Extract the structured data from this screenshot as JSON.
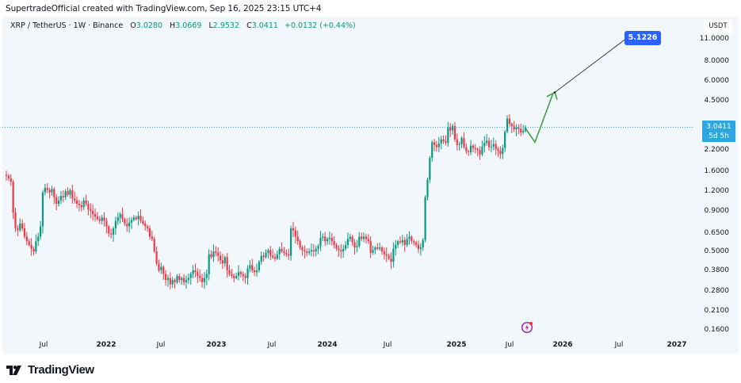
{
  "attribution": "SupertradeOfficial created with TradingView.com, Sep 16, 2025 23:15 UTC+4",
  "legend": {
    "symbol": "XRP / TetherUS · 1W · Binance",
    "open_label": "O",
    "open": "3.0280",
    "high_label": "H",
    "high": "3.0669",
    "low_label": "L",
    "low": "2.9532",
    "close_label": "C",
    "close": "3.0411",
    "change": "+0.0132 (+0.44%)"
  },
  "price_axis": {
    "currency": "USDT",
    "last_price": "3.0411",
    "countdown": "5d 5h",
    "ticks": [
      "11.0000",
      "8.0000",
      "6.0000",
      "4.5000",
      "2.2000",
      "1.6000",
      "1.2000",
      "0.9000",
      "0.6500",
      "0.5000",
      "0.3800",
      "0.2800",
      "0.2100",
      "0.1600"
    ]
  },
  "time_axis": {
    "ticks": [
      "Jul",
      "2022",
      "Jul",
      "2023",
      "Jul",
      "2024",
      "Jul",
      "2025",
      "Jul",
      "2026",
      "Jul",
      "2027"
    ]
  },
  "annotation": {
    "target_price": "5.1226"
  },
  "footer": {
    "brand": "TradingView"
  },
  "colors": {
    "up": "#089981",
    "down": "#f23645",
    "projection": "#43a047",
    "target_label_bg": "#2962ff",
    "last_price_bg": "#2ea7e0",
    "chart_bg": "#f1f7fb"
  },
  "chart_data": {
    "type": "candlestick",
    "title": "XRP / TetherUS · 1W · Binance",
    "xlabel": "",
    "ylabel": "USDT",
    "y_scale": "log",
    "ylim": [
      0.14,
      13
    ],
    "x_tick_labels": [
      "Jul",
      "2022",
      "Jul",
      "2023",
      "Jul",
      "2024",
      "Jul",
      "2025",
      "Jul",
      "2026",
      "Jul",
      "2027"
    ],
    "y_tick_labels": [
      11.0,
      8.0,
      6.0,
      4.5,
      2.2,
      1.6,
      1.2,
      0.9,
      0.65,
      0.5,
      0.38,
      0.28,
      0.21,
      0.16
    ],
    "last": {
      "open": 3.028,
      "high": 3.0669,
      "low": 2.9532,
      "close": 3.0411,
      "change": 0.0132,
      "change_pct": 0.44
    },
    "weekly_closes": [
      1.5,
      1.45,
      1.38,
      0.88,
      0.7,
      0.68,
      0.75,
      0.7,
      0.62,
      0.58,
      0.55,
      0.52,
      0.5,
      0.58,
      0.62,
      0.72,
      1.18,
      1.26,
      1.22,
      1.18,
      1.24,
      1.1,
      1.0,
      1.05,
      1.12,
      1.1,
      1.2,
      1.14,
      1.22,
      1.08,
      1.05,
      1.0,
      0.98,
      0.95,
      1.05,
      1.0,
      0.92,
      0.9,
      0.86,
      0.83,
      0.8,
      0.78,
      0.82,
      0.78,
      0.72,
      0.65,
      0.64,
      0.7,
      0.78,
      0.82,
      0.86,
      0.8,
      0.75,
      0.72,
      0.76,
      0.79,
      0.82,
      0.8,
      0.84,
      0.78,
      0.75,
      0.72,
      0.7,
      0.62,
      0.6,
      0.5,
      0.42,
      0.38,
      0.4,
      0.36,
      0.33,
      0.34,
      0.31,
      0.33,
      0.32,
      0.35,
      0.33,
      0.34,
      0.32,
      0.33,
      0.34,
      0.36,
      0.38,
      0.37,
      0.35,
      0.34,
      0.32,
      0.34,
      0.36,
      0.48,
      0.46,
      0.5,
      0.49,
      0.47,
      0.44,
      0.42,
      0.46,
      0.38,
      0.36,
      0.35,
      0.34,
      0.35,
      0.37,
      0.36,
      0.35,
      0.34,
      0.39,
      0.41,
      0.38,
      0.37,
      0.38,
      0.43,
      0.47,
      0.46,
      0.49,
      0.51,
      0.47,
      0.46,
      0.45,
      0.48,
      0.52,
      0.5,
      0.49,
      0.48,
      0.47,
      0.7,
      0.68,
      0.62,
      0.58,
      0.53,
      0.51,
      0.5,
      0.49,
      0.5,
      0.51,
      0.5,
      0.52,
      0.54,
      0.61,
      0.62,
      0.58,
      0.6,
      0.61,
      0.58,
      0.55,
      0.52,
      0.51,
      0.5,
      0.52,
      0.55,
      0.6,
      0.62,
      0.57,
      0.53,
      0.54,
      0.62,
      0.6,
      0.62,
      0.6,
      0.58,
      0.49,
      0.51,
      0.53,
      0.52,
      0.53,
      0.5,
      0.48,
      0.47,
      0.45,
      0.43,
      0.52,
      0.55,
      0.58,
      0.57,
      0.59,
      0.55,
      0.6,
      0.62,
      0.58,
      0.57,
      0.55,
      0.52,
      0.53,
      0.59,
      1.1,
      1.42,
      1.95,
      2.45,
      2.35,
      2.28,
      2.4,
      2.55,
      2.48,
      2.43,
      3.05,
      2.9,
      3.1,
      2.55,
      2.35,
      2.38,
      2.6,
      2.28,
      2.15,
      2.12,
      2.33,
      2.25,
      2.22,
      2.18,
      2.05,
      2.3,
      2.42,
      2.5,
      2.28,
      2.3,
      2.38,
      2.21,
      2.16,
      2.06,
      2.25,
      2.85,
      3.45,
      3.2,
      3.1,
      2.95,
      3.05,
      2.98,
      2.82,
      2.88,
      3.04
    ]
  }
}
